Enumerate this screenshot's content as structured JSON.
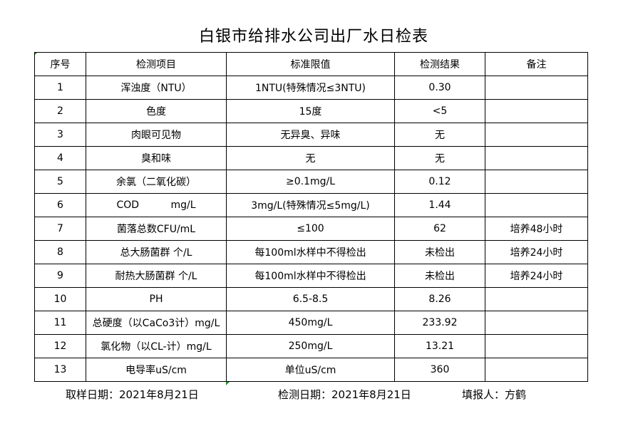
{
  "title": "白银市给排水公司出厂水日检表",
  "headers": [
    "序号",
    "检测项目",
    "标准限值",
    "检测结果",
    "备注"
  ],
  "rows": [
    [
      "1",
      "浑浊度（NTU）",
      "1NTU(特殊情况≤3NTU)",
      "0.30",
      ""
    ],
    [
      "2",
      "色度",
      "15度",
      "<5",
      ""
    ],
    [
      "3",
      "肉眼可见物",
      "无异臭、异味",
      "无",
      ""
    ],
    [
      "4",
      "臭和味",
      "无",
      "无",
      ""
    ],
    [
      "5",
      "余氯（二氧化碳）",
      "≥0.1mg/L",
      "0.12",
      ""
    ],
    [
      "6",
      "COD          mg/L",
      "3mg/L(特殊情况≤5mg/L)",
      "1.44",
      ""
    ],
    [
      "7",
      "菌落总数CFU/mL",
      "≤100",
      "62",
      "培养48小时"
    ],
    [
      "8",
      "总大肠菌群 个/L",
      "每100ml水样中不得检出",
      "未检出",
      "培养24小时"
    ],
    [
      "9",
      "耐热大肠菌群 个/L",
      "每100ml水样中不得检出",
      "未检出",
      "培养24小时"
    ],
    [
      "10",
      "PH",
      "6.5-8.5",
      "8.26",
      ""
    ],
    [
      "11",
      "总硬度（以CaCo3计）mg/L",
      "450mg/L",
      "233.92",
      ""
    ],
    [
      "12",
      "氯化物（以CL-计）mg/L",
      "250mg/L",
      "13.21",
      ""
    ],
    [
      "13",
      "电导率uS/cm",
      "单位uS/cm",
      "360",
      ""
    ]
  ],
  "footer": {
    "sampling_date": "取样日期：2021年8月21日",
    "test_date": "检测日期：2021年8月21日",
    "reporter": "填报人：方鹤"
  }
}
